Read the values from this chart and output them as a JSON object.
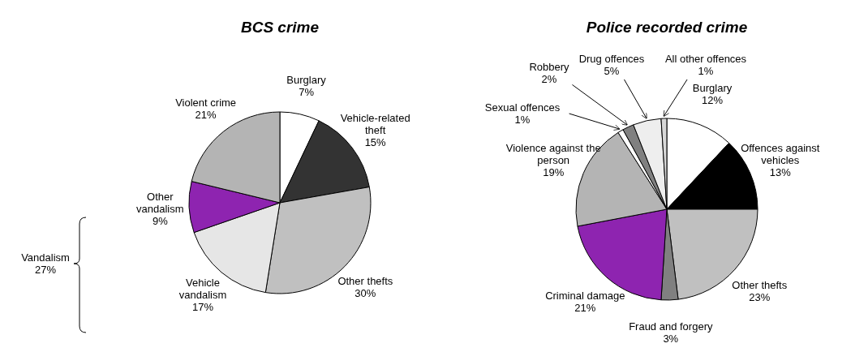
{
  "chart_data": [
    {
      "type": "pie",
      "title": "BCS crime",
      "categories": [
        "Burglary",
        "Vehicle-related theft",
        "Other thefts",
        "Vehicle vandalism",
        "Other vandalism",
        "Violent crime"
      ],
      "values": [
        7,
        15,
        30,
        17,
        9,
        21
      ],
      "value_labels": [
        "7%",
        "15%",
        "30%",
        "17%",
        "9%",
        "21%"
      ],
      "colors": [
        "#ffffff",
        "#333333",
        "#c0c0c0",
        "#e6e6e6",
        "#8e24b0",
        "#b4b4b4"
      ],
      "annotations": [
        "Vandalism 27%"
      ]
    },
    {
      "type": "pie",
      "title": "Police recorded crime",
      "categories": [
        "Burglary",
        "Offences against vehicles",
        "Other thefts",
        "Fraud and forgery",
        "Criminal damage",
        "Violence against the person",
        "Sexual offences",
        "Robbery",
        "Drug offences",
        "All other offences"
      ],
      "values": [
        12,
        13,
        23,
        3,
        21,
        19,
        1,
        2,
        5,
        1
      ],
      "value_labels": [
        "12%",
        "13%",
        "23%",
        "3%",
        "21%",
        "19%",
        "1%",
        "2%",
        "5%",
        "1%"
      ],
      "colors": [
        "#ffffff",
        "#000000",
        "#c0c0c0",
        "#808080",
        "#8e24b0",
        "#b4b4b4",
        "#ffffff",
        "#808080",
        "#eeeeee",
        "#d8d8d8"
      ]
    }
  ]
}
